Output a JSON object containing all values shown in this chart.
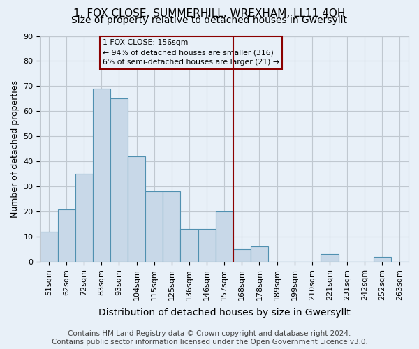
{
  "title": "1, FOX CLOSE, SUMMERHILL, WREXHAM, LL11 4QH",
  "subtitle": "Size of property relative to detached houses in Gwersyllt",
  "xlabel": "Distribution of detached houses by size in Gwersyllt",
  "ylabel": "Number of detached properties",
  "footer": "Contains HM Land Registry data © Crown copyright and database right 2024.\nContains public sector information licensed under the Open Government Licence v3.0.",
  "bin_labels": [
    "51sqm",
    "62sqm",
    "72sqm",
    "83sqm",
    "93sqm",
    "104sqm",
    "115sqm",
    "125sqm",
    "136sqm",
    "146sqm",
    "157sqm",
    "168sqm",
    "178sqm",
    "189sqm",
    "199sqm",
    "210sqm",
    "221sqm",
    "231sqm",
    "242sqm",
    "252sqm",
    "263sqm"
  ],
  "bar_values": [
    12,
    21,
    35,
    69,
    65,
    42,
    28,
    28,
    13,
    13,
    20,
    5,
    6,
    0,
    0,
    0,
    3,
    0,
    0,
    2,
    0
  ],
  "bar_color": "#c8d8e8",
  "bar_edge_color": "#5090b0",
  "vline_x": 10.5,
  "vline_color": "#8b0000",
  "annotation_text": "1 FOX CLOSE: 156sqm\n← 94% of detached houses are smaller (316)\n6% of semi-detached houses are larger (21) →",
  "annotation_box_color": "#8b0000",
  "ylim": [
    0,
    90
  ],
  "yticks": [
    0,
    10,
    20,
    30,
    40,
    50,
    60,
    70,
    80,
    90
  ],
  "grid_color": "#c0c8d0",
  "background_color": "#e8f0f8",
  "title_fontsize": 11,
  "subtitle_fontsize": 10,
  "xlabel_fontsize": 10,
  "ylabel_fontsize": 9,
  "tick_fontsize": 8,
  "footer_fontsize": 7.5
}
